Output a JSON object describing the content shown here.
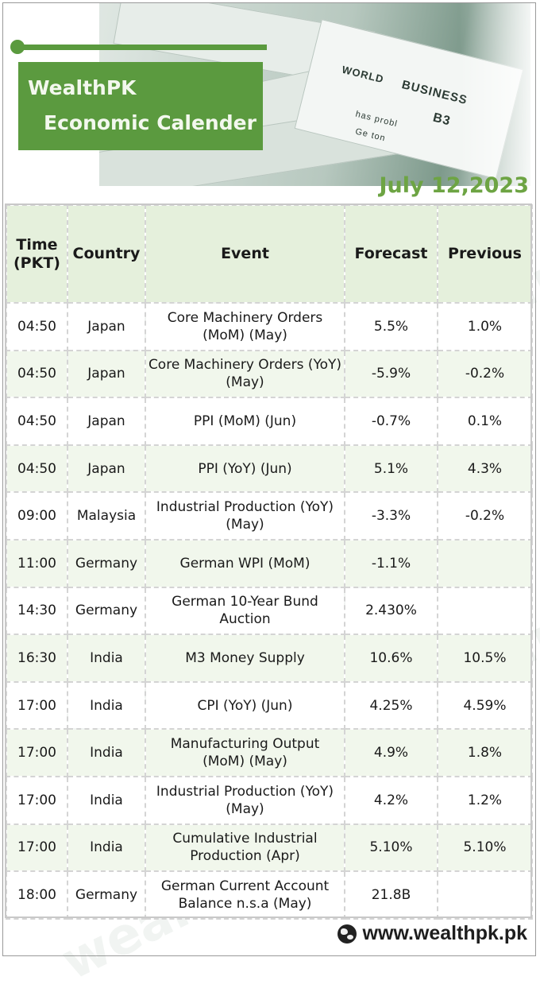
{
  "header": {
    "title_line1": "WealthPK",
    "title_line2": "Economic Calender",
    "date": "July 12,2023"
  },
  "hero_words": [
    "WORLD",
    "BUSINESS",
    "B3",
    "has probl",
    "Ge ton"
  ],
  "watermark": "wealthpk.pk",
  "table": {
    "columns": [
      "Time (PKT)",
      "Country",
      "Event",
      "Forecast",
      "Previous"
    ],
    "rows": [
      {
        "time": "04:50",
        "country": "Japan",
        "event": "Core Machinery Orders (MoM)  (May)",
        "forecast": "5.5%",
        "previous": "1.0%"
      },
      {
        "time": "04:50",
        "country": "Japan",
        "event": "Core Machinery Orders (YoY)  (May)",
        "forecast": "-5.9%",
        "previous": "-0.2%"
      },
      {
        "time": "04:50",
        "country": "Japan",
        "event": "PPI (MoM)  (Jun)",
        "forecast": "-0.7%",
        "previous": "0.1%"
      },
      {
        "time": "04:50",
        "country": "Japan",
        "event": "PPI (YoY)  (Jun)",
        "forecast": "5.1%",
        "previous": "4.3%"
      },
      {
        "time": "09:00",
        "country": "Malaysia",
        "event": "Industrial Production (YoY) (May)",
        "forecast": "-3.3%",
        "previous": "-0.2%"
      },
      {
        "time": "11:00",
        "country": "Germany",
        "event": "German WPI (MoM)",
        "forecast": "-1.1%",
        "previous": ""
      },
      {
        "time": "14:30",
        "country": "Germany",
        "event": "German 10-Year Bund Auction",
        "forecast": "2.430%",
        "previous": ""
      },
      {
        "time": "16:30",
        "country": "India",
        "event": "M3 Money Supply",
        "forecast": "10.6%",
        "previous": "10.5%"
      },
      {
        "time": "17:00",
        "country": "India",
        "event": "CPI (YoY)  (Jun)",
        "forecast": "4.25%",
        "previous": "4.59%"
      },
      {
        "time": "17:00",
        "country": "India",
        "event": "Manufacturing Output (MoM)  (May)",
        "forecast": "4.9%",
        "previous": "1.8%"
      },
      {
        "time": "17:00",
        "country": "India",
        "event": "Industrial Production (YoY) (May)",
        "forecast": "4.2%",
        "previous": "1.2%"
      },
      {
        "time": "17:00",
        "country": "India",
        "event": "Cumulative Industrial Production  (Apr)",
        "forecast": "5.10%",
        "previous": "5.10%"
      },
      {
        "time": "18:00",
        "country": "Germany",
        "event": "German Current Account Balance n.s.a  (May)",
        "forecast": "21.8B",
        "previous": ""
      }
    ]
  },
  "footer": {
    "url": "www.wealthpk.pk",
    "icon": "globe-icon"
  },
  "colors": {
    "brand_green": "#5b9a3f",
    "date_green": "#6da443",
    "header_row": "#e5f0dc",
    "alt_row": "#f1f7ec"
  }
}
